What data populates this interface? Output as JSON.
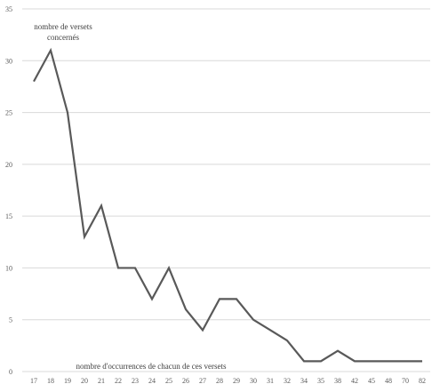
{
  "chart_data": {
    "type": "line",
    "ylabel": "nombre de versets\nconcernés",
    "xlabel": "nombre d'occurrences de chacun de ces versets",
    "ylim": [
      0,
      35
    ],
    "yticks": [
      0,
      5,
      10,
      15,
      20,
      25,
      30,
      35
    ],
    "grid": true,
    "categories": [
      "17",
      "18",
      "19",
      "20",
      "21",
      "22",
      "23",
      "24",
      "25",
      "26",
      "27",
      "28",
      "29",
      "30",
      "31",
      "32",
      "34",
      "35",
      "38",
      "42",
      "45",
      "48",
      "70",
      "82"
    ],
    "series": [
      {
        "values": [
          28,
          31,
          25,
          13,
          16,
          10,
          10,
          7,
          10,
          6,
          4,
          7,
          7,
          5,
          4,
          3,
          1,
          1,
          2,
          1,
          1,
          1,
          1,
          1
        ],
        "color": "#595959"
      }
    ]
  }
}
